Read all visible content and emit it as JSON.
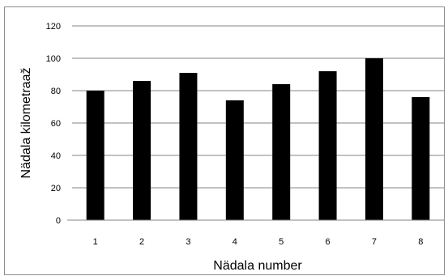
{
  "chart_data": {
    "type": "bar",
    "categories": [
      "1",
      "2",
      "3",
      "4",
      "5",
      "6",
      "7",
      "8"
    ],
    "values": [
      80,
      86,
      91,
      74,
      84,
      92,
      100,
      76
    ],
    "title": "",
    "xlabel": "Nädala number",
    "ylabel": "Nädala kilometraaž",
    "ylim": [
      0,
      120
    ],
    "yticks": [
      0,
      20,
      40,
      60,
      80,
      100,
      120
    ],
    "grid": true,
    "legend": "none",
    "bar_color": "#000000",
    "grid_color": "#868686"
  }
}
